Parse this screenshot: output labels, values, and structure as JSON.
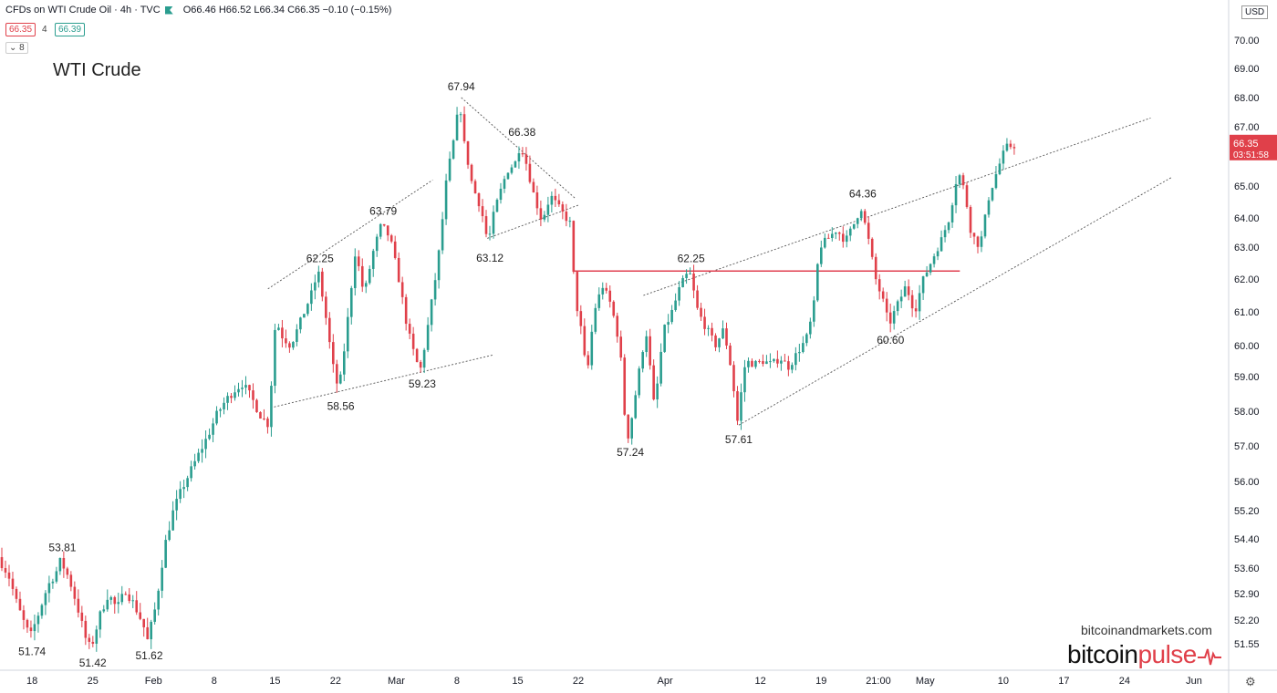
{
  "header": {
    "symbol": "CFDs on WTI Crude Oil · 4h · TVC",
    "ohlc": "O66.46 H66.52 L66.34 C66.35 −0.10 (−0.15%)",
    "bid": "66.35",
    "spread": "4",
    "ask": "66.39",
    "indicator_count": "8",
    "currency": "USD"
  },
  "watermark": {
    "site": "bitcoinandmarkets.com",
    "brand_a": "bitcoin",
    "brand_b": "pulse"
  },
  "colors": {
    "up": "#2a9d8f",
    "down": "#e0404a",
    "line": "#555555",
    "resistance": "#e04050"
  },
  "chart_data": {
    "type": "candlestick",
    "title": "WTI Crude",
    "interval": "4h",
    "y_axis_ticks": [
      "70.00",
      "69.00",
      "68.00",
      "67.00",
      "66.00",
      "65.00",
      "64.00",
      "63.00",
      "62.00",
      "61.00",
      "60.00",
      "59.00",
      "58.00",
      "57.00",
      "56.00",
      "55.20",
      "54.40",
      "53.60",
      "52.90",
      "52.20",
      "51.55"
    ],
    "x_axis_ticks": [
      {
        "label": "18",
        "day": 0
      },
      {
        "label": "25",
        "day": 7
      },
      {
        "label": "Feb",
        "day": 14
      },
      {
        "label": "8",
        "day": 21
      },
      {
        "label": "15",
        "day": 28
      },
      {
        "label": "22",
        "day": 35
      },
      {
        "label": "Mar",
        "day": 42
      },
      {
        "label": "8",
        "day": 49
      },
      {
        "label": "15",
        "day": 56
      },
      {
        "label": "22",
        "day": 63
      },
      {
        "label": "Apr",
        "day": 73
      },
      {
        "label": "12",
        "day": 84
      },
      {
        "label": "19",
        "day": 91
      },
      {
        "label": "21:00",
        "day": 97.6
      },
      {
        "label": "May",
        "day": 103
      },
      {
        "label": "10",
        "day": 112
      },
      {
        "label": "17",
        "day": 119
      },
      {
        "label": "24",
        "day": 126
      },
      {
        "label": "Jun",
        "day": 134
      }
    ],
    "x_range_days": [
      -3.7,
      138
    ],
    "price_path": [
      [
        -3.7,
        53.9
      ],
      [
        -2.5,
        53.4
      ],
      [
        -1.5,
        52.6
      ],
      [
        -0.5,
        52.0
      ],
      [
        0,
        51.74
      ],
      [
        1,
        52.4
      ],
      [
        2,
        53.1
      ],
      [
        3,
        53.5
      ],
      [
        3.5,
        53.81
      ],
      [
        4.5,
        53.3
      ],
      [
        5.5,
        52.5
      ],
      [
        6.5,
        51.6
      ],
      [
        7,
        51.42
      ],
      [
        8,
        52.3
      ],
      [
        9,
        52.9
      ],
      [
        10,
        52.5
      ],
      [
        11,
        53.0
      ],
      [
        12,
        52.6
      ],
      [
        13,
        52.1
      ],
      [
        13.5,
        51.62
      ],
      [
        14.5,
        52.6
      ],
      [
        15.5,
        54.2
      ],
      [
        16.5,
        55.2
      ],
      [
        17.5,
        55.8
      ],
      [
        18.5,
        56.3
      ],
      [
        19.5,
        56.8
      ],
      [
        20.5,
        57.3
      ],
      [
        21.5,
        57.9
      ],
      [
        22.5,
        58.3
      ],
      [
        23.5,
        58.6
      ],
      [
        24.5,
        58.8
      ],
      [
        25.5,
        58.4
      ],
      [
        26.5,
        57.9
      ],
      [
        27.5,
        57.6
      ],
      [
        28.3,
        60.8
      ],
      [
        29,
        60.3
      ],
      [
        30,
        60.0
      ],
      [
        31,
        60.6
      ],
      [
        32.5,
        61.6
      ],
      [
        33.2,
        62.25
      ],
      [
        34,
        61.0
      ],
      [
        35,
        59.2
      ],
      [
        35.6,
        58.56
      ],
      [
        36.5,
        60.5
      ],
      [
        37.5,
        62.9
      ],
      [
        38.5,
        61.5
      ],
      [
        39.5,
        62.8
      ],
      [
        40.5,
        63.79
      ],
      [
        41.5,
        63.3
      ],
      [
        42.5,
        62.0
      ],
      [
        43.5,
        60.5
      ],
      [
        44.5,
        59.5
      ],
      [
        45,
        59.23
      ],
      [
        46,
        60.8
      ],
      [
        47,
        62.5
      ],
      [
        48,
        65.2
      ],
      [
        49,
        66.8
      ],
      [
        49.5,
        67.94
      ],
      [
        50,
        66.5
      ],
      [
        51,
        65.0
      ],
      [
        52,
        64.3
      ],
      [
        52.8,
        63.12
      ],
      [
        53.5,
        64.2
      ],
      [
        55,
        65.5
      ],
      [
        56,
        65.8
      ],
      [
        56.5,
        66.38
      ],
      [
        57,
        66.0
      ],
      [
        58,
        64.8
      ],
      [
        59,
        63.9
      ],
      [
        60,
        64.7
      ],
      [
        61,
        64.3
      ],
      [
        62.3,
        63.8
      ],
      [
        62.8,
        61.5
      ],
      [
        63.5,
        60.5
      ],
      [
        64.2,
        59.0
      ],
      [
        65,
        61.0
      ],
      [
        66,
        61.8
      ],
      [
        67,
        61.2
      ],
      [
        68,
        60.0
      ],
      [
        68.5,
        58.0
      ],
      [
        69,
        57.24
      ],
      [
        70,
        58.8
      ],
      [
        71,
        60.5
      ],
      [
        72,
        58.0
      ],
      [
        73,
        60.4
      ],
      [
        74,
        61.0
      ],
      [
        75,
        61.8
      ],
      [
        76,
        62.25
      ],
      [
        77,
        61.0
      ],
      [
        78,
        60.5
      ],
      [
        79,
        60.0
      ],
      [
        80,
        60.5
      ],
      [
        81,
        59.0
      ],
      [
        81.5,
        57.61
      ],
      [
        82.5,
        59.5
      ],
      [
        83.5,
        59.4
      ],
      [
        84.5,
        59.5
      ],
      [
        85.5,
        59.4
      ],
      [
        86.5,
        59.6
      ],
      [
        87.5,
        59.3
      ],
      [
        88.5,
        59.8
      ],
      [
        89.5,
        60.2
      ],
      [
        90.3,
        61.0
      ],
      [
        91,
        63.0
      ],
      [
        92,
        63.3
      ],
      [
        93,
        63.6
      ],
      [
        94,
        63.2
      ],
      [
        95,
        63.8
      ],
      [
        95.8,
        64.36
      ],
      [
        96.5,
        63.5
      ],
      [
        97.5,
        62.0
      ],
      [
        98.5,
        61.2
      ],
      [
        99,
        60.6
      ],
      [
        100,
        61.2
      ],
      [
        101,
        61.8
      ],
      [
        102,
        61.0
      ],
      [
        103,
        62.0
      ],
      [
        104,
        62.6
      ],
      [
        105,
        63.2
      ],
      [
        106,
        64.0
      ],
      [
        107,
        65.5
      ],
      [
        107.8,
        64.8
      ],
      [
        108.5,
        63.5
      ],
      [
        109.5,
        63.0
      ],
      [
        110.5,
        64.6
      ],
      [
        111.5,
        65.5
      ],
      [
        112.5,
        66.3
      ],
      [
        113.3,
        66.35
      ]
    ],
    "peak_labels": [
      {
        "day": 0,
        "price": 51.74,
        "text": "51.74",
        "pos": "below"
      },
      {
        "day": 3.5,
        "price": 53.81,
        "text": "53.81",
        "pos": "above"
      },
      {
        "day": 7,
        "price": 51.42,
        "text": "51.42",
        "pos": "below"
      },
      {
        "day": 13.5,
        "price": 51.62,
        "text": "51.62",
        "pos": "below"
      },
      {
        "day": 33.2,
        "price": 62.25,
        "text": "62.25",
        "pos": "above"
      },
      {
        "day": 35.6,
        "price": 58.56,
        "text": "58.56",
        "pos": "below"
      },
      {
        "day": 40.5,
        "price": 63.79,
        "text": "63.79",
        "pos": "above"
      },
      {
        "day": 45,
        "price": 59.23,
        "text": "59.23",
        "pos": "below"
      },
      {
        "day": 49.5,
        "price": 67.94,
        "text": "67.94",
        "pos": "above"
      },
      {
        "day": 56.5,
        "price": 66.38,
        "text": "66.38",
        "pos": "above"
      },
      {
        "day": 52.8,
        "price": 63.12,
        "text": "63.12",
        "pos": "below"
      },
      {
        "day": 69,
        "price": 57.24,
        "text": "57.24",
        "pos": "below"
      },
      {
        "day": 76,
        "price": 62.25,
        "text": "62.25",
        "pos": "above"
      },
      {
        "day": 81.5,
        "price": 57.61,
        "text": "57.61",
        "pos": "below"
      },
      {
        "day": 95.8,
        "price": 64.36,
        "text": "64.36",
        "pos": "above"
      },
      {
        "day": 99,
        "price": 60.6,
        "text": "60.60",
        "pos": "below"
      }
    ],
    "trendlines": [
      {
        "style": "dotted",
        "from": [
          27.2,
          61.7
        ],
        "to": [
          46.2,
          65.2
        ]
      },
      {
        "style": "dotted",
        "from": [
          27.5,
          58.1
        ],
        "to": [
          53.2,
          59.7
        ]
      },
      {
        "style": "dotted",
        "from": [
          49.5,
          68.0
        ],
        "to": [
          62.7,
          64.6
        ]
      },
      {
        "style": "dotted",
        "from": [
          52.5,
          63.3
        ],
        "to": [
          63.0,
          64.4
        ]
      },
      {
        "style": "dotted",
        "from": [
          70.5,
          61.5
        ],
        "to": [
          129.0,
          67.3
        ]
      },
      {
        "style": "dotted",
        "from": [
          81.5,
          57.6
        ],
        "to": [
          131.5,
          65.3
        ]
      },
      {
        "style": "solid-red",
        "from": [
          62.5,
          62.25
        ],
        "to": [
          107.0,
          62.25
        ]
      }
    ],
    "last_price": {
      "value": "66.35",
      "countdown": "03:51:58"
    }
  }
}
